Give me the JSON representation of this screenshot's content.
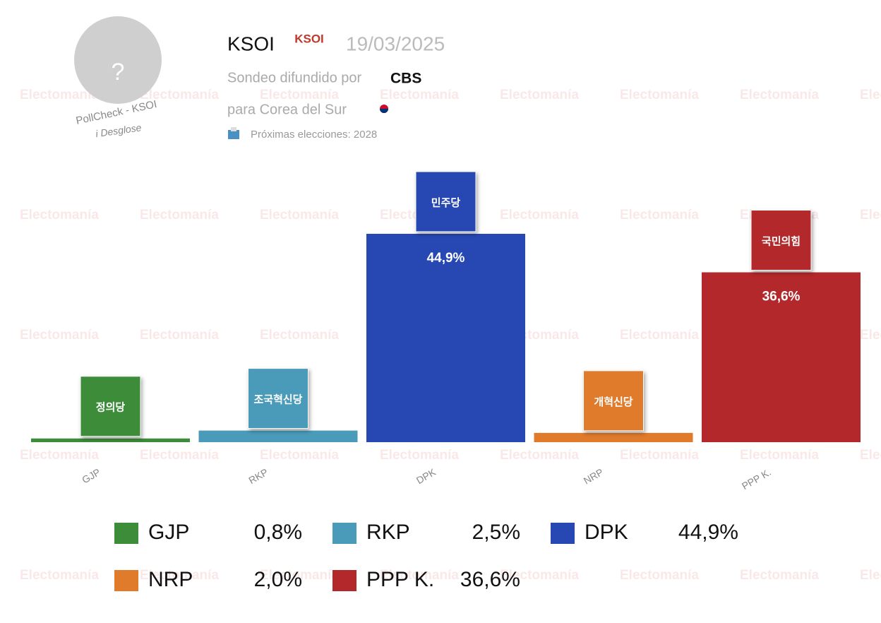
{
  "header": {
    "pollster": "KSOI",
    "logo": "KSOI",
    "date": "19/03/2025",
    "sponsor_text": "Sondeo difundido por",
    "sponsor": "CBS",
    "country_text": "para Corea del Sur",
    "next_election": "Próximas elecciones: 2028",
    "avatar": "?",
    "source": "PollCheck - KSOI",
    "breakdown": "i Desglose",
    "watermark": "Electomanía"
  },
  "chart_data": {
    "type": "bar",
    "categories": [
      "GJP",
      "RKP",
      "DPK",
      "NRP",
      "PPP K."
    ],
    "values": [
      0.8,
      2.5,
      44.9,
      2.0,
      36.6
    ],
    "value_labels": [
      "0,8%",
      "2,5%",
      "44,9%",
      "2,0%",
      "36,6%"
    ],
    "colors": [
      "#3d8c3a",
      "#4a9ab9",
      "#2748b3",
      "#e07b2c",
      "#b3282a"
    ],
    "logos": [
      "정의당",
      "조국혁신당",
      "민주당",
      "개혁신당",
      "국민의힘"
    ]
  }
}
